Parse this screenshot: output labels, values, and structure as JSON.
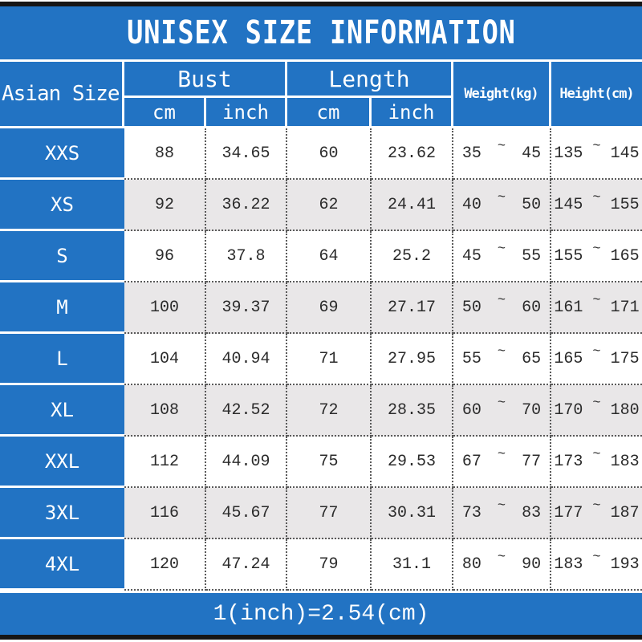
{
  "title": "UNISEX SIZE INFORMATION",
  "header": {
    "size_col": "Asian Size",
    "bust": "Bust",
    "length": "Length",
    "weight": "Weight(kg)",
    "height": "Height(cm)",
    "unit_cm": "cm",
    "unit_inch": "inch"
  },
  "sym": {
    "tilde": "~"
  },
  "rows": [
    {
      "size": "XXS",
      "bust_cm": "88",
      "bust_inch": "34.65",
      "length_cm": "60",
      "length_inch": "23.62",
      "weight_min": "35",
      "weight_max": "45",
      "height_min": "135",
      "height_max": "145"
    },
    {
      "size": "XS",
      "bust_cm": "92",
      "bust_inch": "36.22",
      "length_cm": "62",
      "length_inch": "24.41",
      "weight_min": "40",
      "weight_max": "50",
      "height_min": "145",
      "height_max": "155"
    },
    {
      "size": "S",
      "bust_cm": "96",
      "bust_inch": "37.8",
      "length_cm": "64",
      "length_inch": "25.2",
      "weight_min": "45",
      "weight_max": "55",
      "height_min": "155",
      "height_max": "165"
    },
    {
      "size": "M",
      "bust_cm": "100",
      "bust_inch": "39.37",
      "length_cm": "69",
      "length_inch": "27.17",
      "weight_min": "50",
      "weight_max": "60",
      "height_min": "161",
      "height_max": "171"
    },
    {
      "size": "L",
      "bust_cm": "104",
      "bust_inch": "40.94",
      "length_cm": "71",
      "length_inch": "27.95",
      "weight_min": "55",
      "weight_max": "65",
      "height_min": "165",
      "height_max": "175"
    },
    {
      "size": "XL",
      "bust_cm": "108",
      "bust_inch": "42.52",
      "length_cm": "72",
      "length_inch": "28.35",
      "weight_min": "60",
      "weight_max": "70",
      "height_min": "170",
      "height_max": "180"
    },
    {
      "size": "XXL",
      "bust_cm": "112",
      "bust_inch": "44.09",
      "length_cm": "75",
      "length_inch": "29.53",
      "weight_min": "67",
      "weight_max": "77",
      "height_min": "173",
      "height_max": "183"
    },
    {
      "size": "3XL",
      "bust_cm": "116",
      "bust_inch": "45.67",
      "length_cm": "77",
      "length_inch": "30.31",
      "weight_min": "73",
      "weight_max": "83",
      "height_min": "177",
      "height_max": "187"
    },
    {
      "size": "4XL",
      "bust_cm": "120",
      "bust_inch": "47.24",
      "length_cm": "79",
      "length_inch": "31.1",
      "weight_min": "80",
      "weight_max": "90",
      "height_min": "183",
      "height_max": "193"
    }
  ],
  "footer": "1(inch)=2.54(cm)",
  "colors": {
    "accent_blue": "#2273c3",
    "alt_row_gray": "#e9e7e8",
    "border_dark": "#5a5a5a",
    "strip_black": "#161616",
    "text_white": "#ffffff",
    "text_dark": "#2b2b2b"
  },
  "chart_data": {
    "type": "table",
    "title": "UNISEX SIZE INFORMATION",
    "columns": [
      "Asian Size",
      "Bust (cm)",
      "Bust (inch)",
      "Length (cm)",
      "Length (inch)",
      "Weight (kg)",
      "Height (cm)"
    ],
    "rows": [
      [
        "XXS",
        "88",
        "34.65",
        "60",
        "23.62",
        "35~45",
        "135~145"
      ],
      [
        "XS",
        "92",
        "36.22",
        "62",
        "24.41",
        "40~50",
        "145~155"
      ],
      [
        "S",
        "96",
        "37.8",
        "64",
        "25.2",
        "45~55",
        "155~165"
      ],
      [
        "M",
        "100",
        "39.37",
        "69",
        "27.17",
        "50~60",
        "161~171"
      ],
      [
        "L",
        "104",
        "40.94",
        "71",
        "27.95",
        "55~65",
        "165~175"
      ],
      [
        "XL",
        "108",
        "42.52",
        "72",
        "28.35",
        "60~70",
        "170~180"
      ],
      [
        "XXL",
        "112",
        "44.09",
        "75",
        "29.53",
        "67~77",
        "173~183"
      ],
      [
        "3XL",
        "116",
        "45.67",
        "77",
        "30.31",
        "73~83",
        "177~187"
      ],
      [
        "4XL",
        "120",
        "47.24",
        "79",
        "31.1",
        "80~90",
        "183~193"
      ]
    ],
    "footnote": "1(inch)=2.54(cm)"
  }
}
